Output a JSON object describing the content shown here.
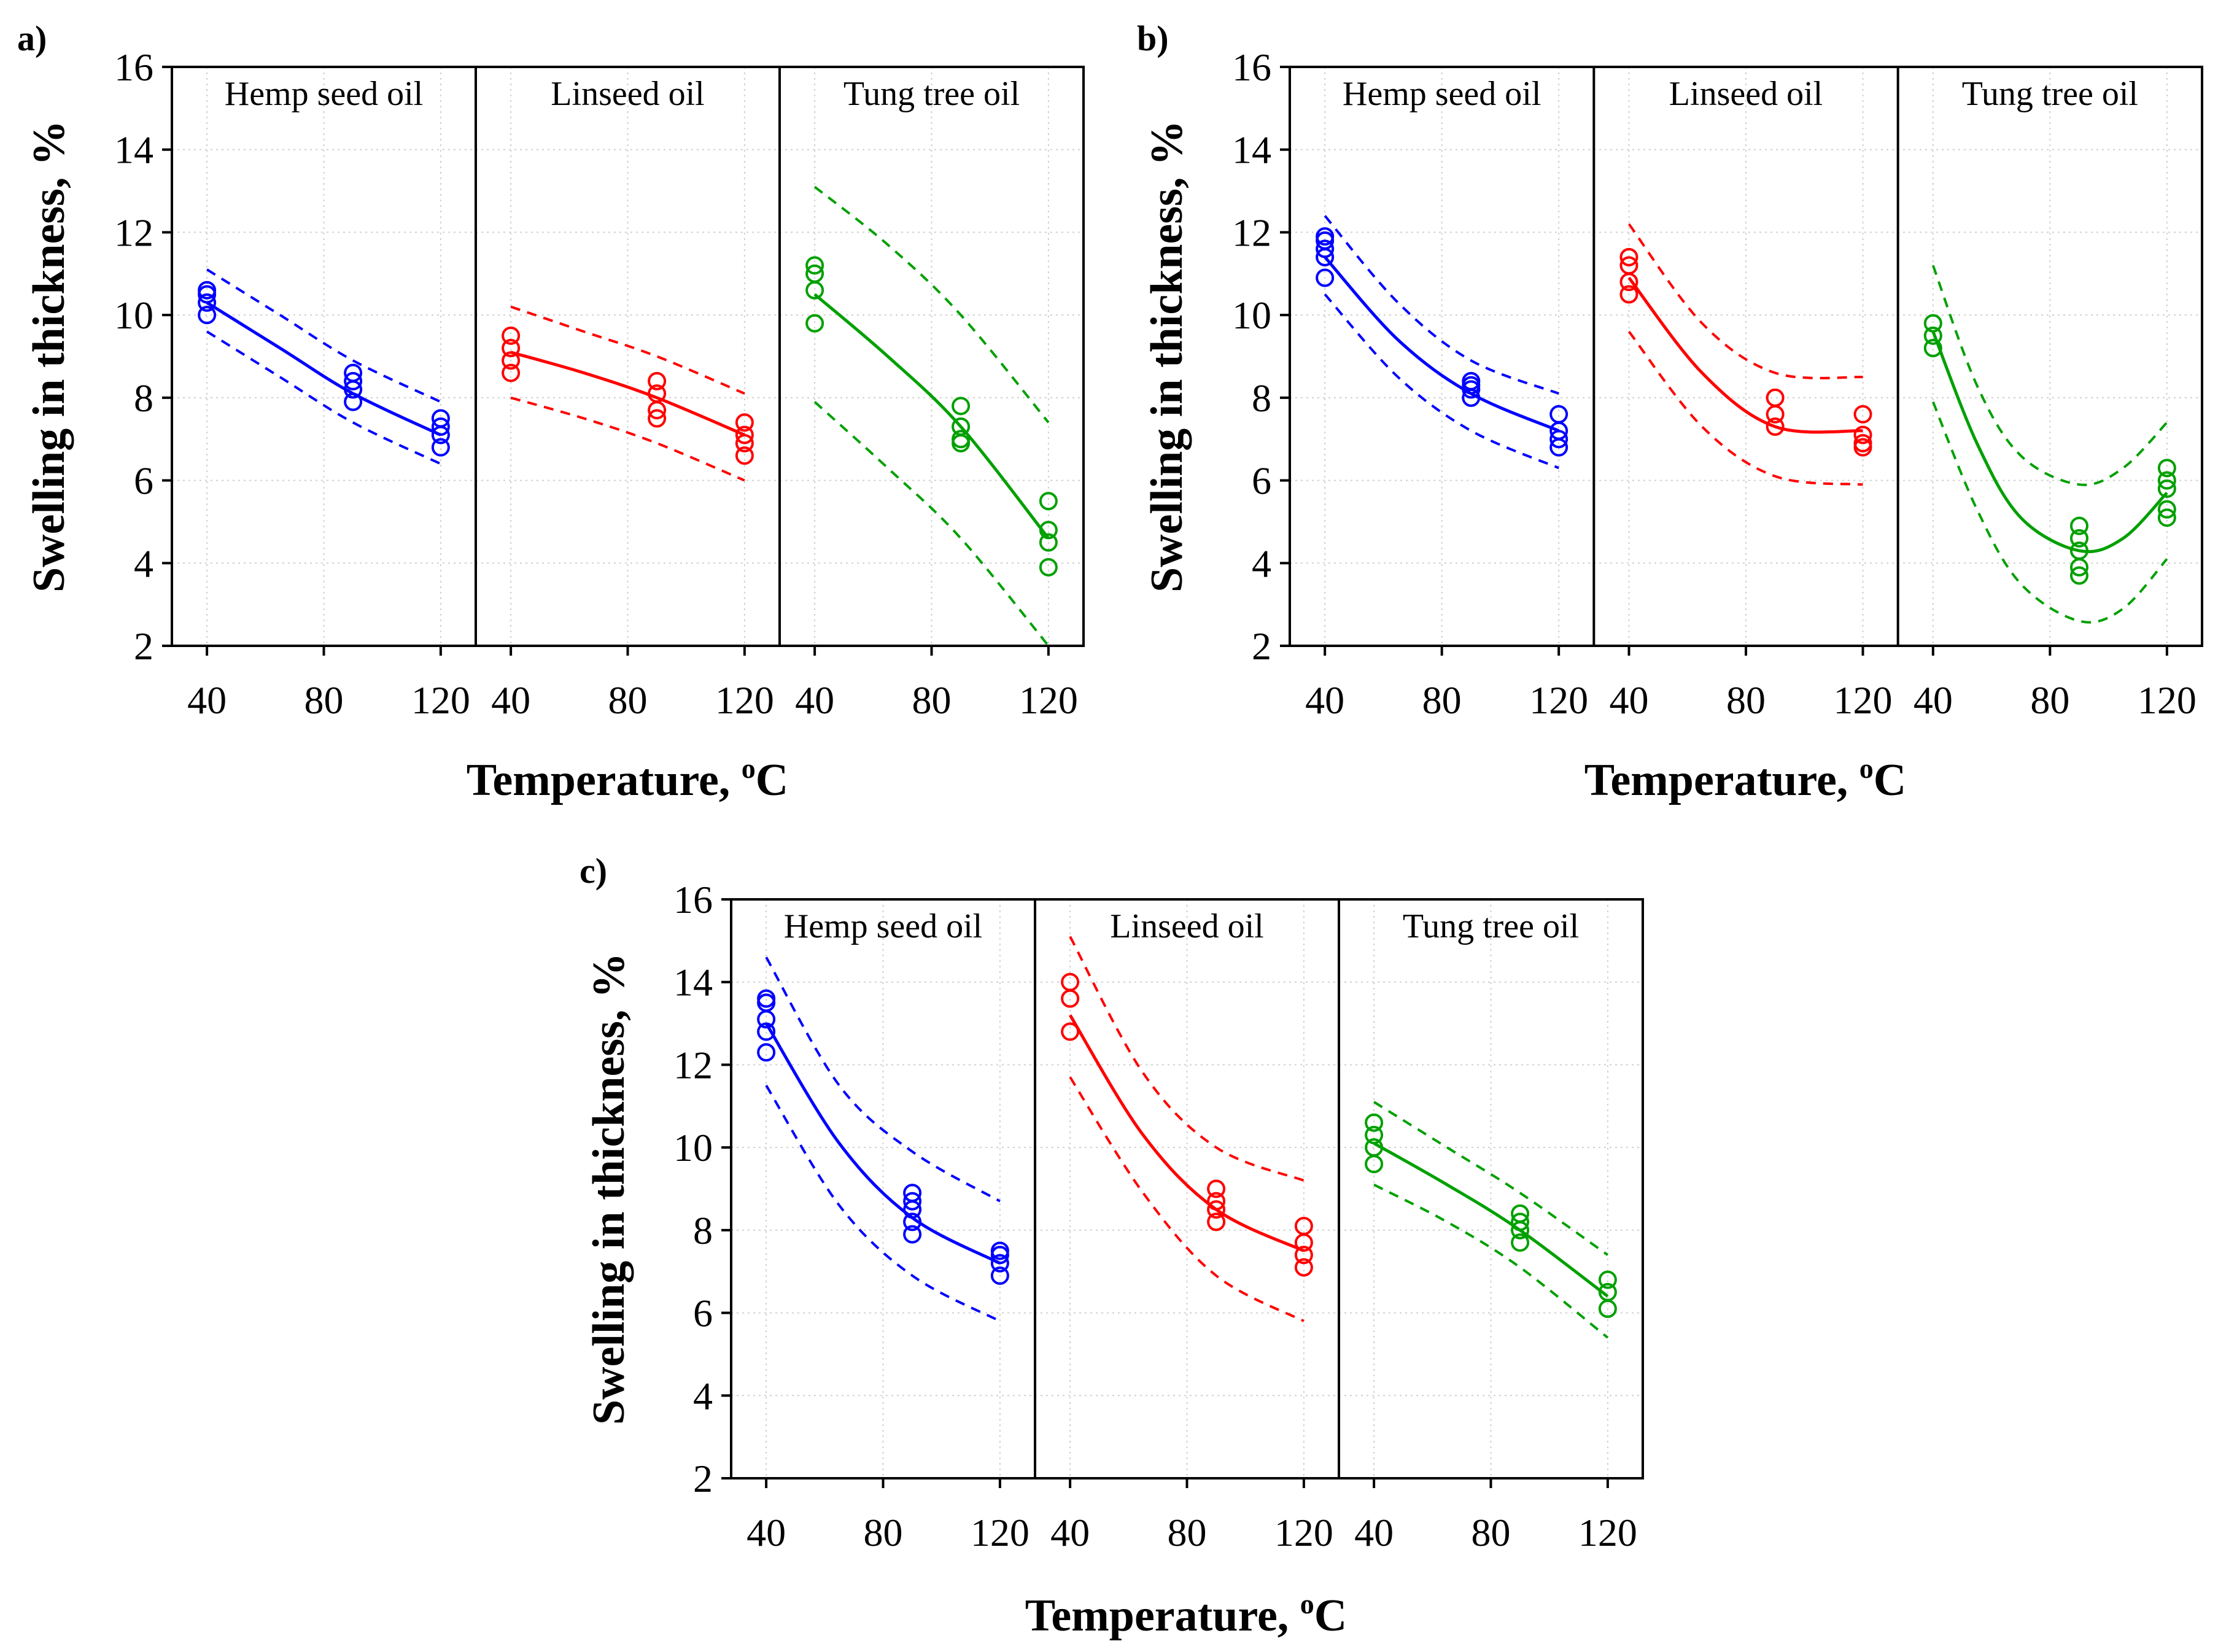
{
  "figure": {
    "panels": [
      "a)",
      "b)",
      "c)"
    ]
  },
  "chart_data": [
    {
      "type": "scatter",
      "panel_label": "a)",
      "xlabel": "Temperature, ",
      "xlabel_sup": "o",
      "xlabel_tail": "C",
      "ylabel": "Swelling in thickness, %",
      "ylim": [
        2,
        16
      ],
      "yticks": [
        2,
        4,
        6,
        8,
        10,
        12,
        14,
        16
      ],
      "xlim": [
        28,
        132
      ],
      "xticks": [
        40,
        80,
        120
      ],
      "facets": [
        {
          "title": "Hemp seed oil",
          "color": "#0000ff",
          "points": [
            [
              40,
              10.5
            ],
            [
              40,
              10.6
            ],
            [
              40,
              10.3
            ],
            [
              40,
              10.0
            ],
            [
              90,
              8.6
            ],
            [
              90,
              8.4
            ],
            [
              90,
              8.2
            ],
            [
              90,
              7.9
            ],
            [
              120,
              7.5
            ],
            [
              120,
              7.3
            ],
            [
              120,
              7.1
            ],
            [
              120,
              6.8
            ]
          ],
          "fit": [
            [
              40,
              10.3
            ],
            [
              65,
              9.2
            ],
            [
              90,
              8.1
            ],
            [
              120,
              7.1
            ]
          ],
          "upper": [
            [
              40,
              11.1
            ],
            [
              65,
              10.0
            ],
            [
              90,
              8.9
            ],
            [
              120,
              7.9
            ]
          ],
          "lower": [
            [
              40,
              9.6
            ],
            [
              65,
              8.5
            ],
            [
              90,
              7.4
            ],
            [
              120,
              6.4
            ]
          ]
        },
        {
          "title": "Linseed oil",
          "color": "#ff0000",
          "points": [
            [
              40,
              9.5
            ],
            [
              40,
              9.2
            ],
            [
              40,
              8.9
            ],
            [
              40,
              8.6
            ],
            [
              90,
              8.4
            ],
            [
              90,
              8.1
            ],
            [
              90,
              7.7
            ],
            [
              90,
              7.5
            ],
            [
              120,
              7.4
            ],
            [
              120,
              7.1
            ],
            [
              120,
              6.9
            ],
            [
              120,
              6.6
            ]
          ],
          "fit": [
            [
              40,
              9.1
            ],
            [
              65,
              8.6
            ],
            [
              90,
              8.0
            ],
            [
              120,
              7.1
            ]
          ],
          "upper": [
            [
              40,
              10.2
            ],
            [
              65,
              9.6
            ],
            [
              90,
              9.0
            ],
            [
              120,
              8.1
            ]
          ],
          "lower": [
            [
              40,
              8.0
            ],
            [
              65,
              7.5
            ],
            [
              90,
              6.9
            ],
            [
              120,
              6.0
            ]
          ]
        },
        {
          "title": "Tung tree oil",
          "color": "#00a000",
          "points": [
            [
              40,
              11.2
            ],
            [
              40,
              11.0
            ],
            [
              40,
              10.6
            ],
            [
              40,
              9.8
            ],
            [
              90,
              7.8
            ],
            [
              90,
              7.3
            ],
            [
              90,
              7.0
            ],
            [
              90,
              6.9
            ],
            [
              120,
              5.5
            ],
            [
              120,
              4.8
            ],
            [
              120,
              4.5
            ],
            [
              120,
              3.9
            ]
          ],
          "fit": [
            [
              40,
              10.5
            ],
            [
              65,
              9.0
            ],
            [
              90,
              7.3
            ],
            [
              120,
              4.6
            ]
          ],
          "upper": [
            [
              40,
              13.1
            ],
            [
              65,
              11.7
            ],
            [
              90,
              10.0
            ],
            [
              120,
              7.4
            ]
          ],
          "lower": [
            [
              40,
              7.9
            ],
            [
              65,
              6.3
            ],
            [
              90,
              4.6
            ],
            [
              120,
              2.0
            ]
          ]
        }
      ]
    },
    {
      "type": "scatter",
      "panel_label": "b)",
      "xlabel": "Temperature, ",
      "xlabel_sup": "o",
      "xlabel_tail": "C",
      "ylabel": "Swelling in thickness, %",
      "ylim": [
        2,
        16
      ],
      "yticks": [
        2,
        4,
        6,
        8,
        10,
        12,
        14,
        16
      ],
      "xlim": [
        28,
        132
      ],
      "xticks": [
        40,
        80,
        120
      ],
      "facets": [
        {
          "title": "Hemp seed oil",
          "color": "#0000ff",
          "points": [
            [
              40,
              11.9
            ],
            [
              40,
              11.8
            ],
            [
              40,
              11.6
            ],
            [
              40,
              11.4
            ],
            [
              40,
              10.9
            ],
            [
              90,
              8.4
            ],
            [
              90,
              8.3
            ],
            [
              90,
              8.2
            ],
            [
              90,
              8.0
            ],
            [
              120,
              7.6
            ],
            [
              120,
              7.2
            ],
            [
              120,
              7.0
            ],
            [
              120,
              6.8
            ]
          ],
          "fit": [
            [
              40,
              11.4
            ],
            [
              65,
              9.4
            ],
            [
              90,
              8.1
            ],
            [
              120,
              7.2
            ]
          ],
          "upper": [
            [
              40,
              12.4
            ],
            [
              65,
              10.3
            ],
            [
              90,
              8.9
            ],
            [
              120,
              8.1
            ]
          ],
          "lower": [
            [
              40,
              10.5
            ],
            [
              65,
              8.5
            ],
            [
              90,
              7.2
            ],
            [
              120,
              6.3
            ]
          ]
        },
        {
          "title": "Linseed oil",
          "color": "#ff0000",
          "points": [
            [
              40,
              11.4
            ],
            [
              40,
              11.2
            ],
            [
              40,
              10.8
            ],
            [
              40,
              10.5
            ],
            [
              90,
              8.0
            ],
            [
              90,
              7.6
            ],
            [
              90,
              7.3
            ],
            [
              120,
              7.6
            ],
            [
              120,
              7.1
            ],
            [
              120,
              6.9
            ],
            [
              120,
              6.8
            ]
          ],
          "fit": [
            [
              40,
              10.9
            ],
            [
              65,
              8.6
            ],
            [
              90,
              7.3
            ],
            [
              120,
              7.2
            ]
          ],
          "upper": [
            [
              40,
              12.2
            ],
            [
              65,
              9.8
            ],
            [
              90,
              8.6
            ],
            [
              120,
              8.5
            ]
          ],
          "lower": [
            [
              40,
              9.6
            ],
            [
              65,
              7.3
            ],
            [
              90,
              6.1
            ],
            [
              120,
              5.9
            ]
          ]
        },
        {
          "title": "Tung tree oil",
          "color": "#00a000",
          "points": [
            [
              40,
              9.8
            ],
            [
              40,
              9.5
            ],
            [
              40,
              9.2
            ],
            [
              90,
              4.9
            ],
            [
              90,
              4.6
            ],
            [
              90,
              4.3
            ],
            [
              90,
              3.9
            ],
            [
              90,
              3.7
            ],
            [
              120,
              6.3
            ],
            [
              120,
              6.0
            ],
            [
              120,
              5.8
            ],
            [
              120,
              5.3
            ],
            [
              120,
              5.1
            ]
          ],
          "fit": [
            [
              40,
              9.6
            ],
            [
              55,
              6.9
            ],
            [
              70,
              5.1
            ],
            [
              90,
              4.3
            ],
            [
              105,
              4.6
            ],
            [
              120,
              5.7
            ]
          ],
          "upper": [
            [
              40,
              11.2
            ],
            [
              55,
              8.3
            ],
            [
              70,
              6.6
            ],
            [
              90,
              5.9
            ],
            [
              105,
              6.3
            ],
            [
              120,
              7.4
            ]
          ],
          "lower": [
            [
              40,
              7.9
            ],
            [
              55,
              5.3
            ],
            [
              70,
              3.5
            ],
            [
              90,
              2.6
            ],
            [
              105,
              2.9
            ],
            [
              120,
              4.1
            ]
          ]
        }
      ]
    },
    {
      "type": "scatter",
      "panel_label": "c)",
      "xlabel": "Temperature, ",
      "xlabel_sup": "o",
      "xlabel_tail": "C",
      "ylabel": "Swelling in thickness, %",
      "ylim": [
        2,
        16
      ],
      "yticks": [
        2,
        4,
        6,
        8,
        10,
        12,
        14,
        16
      ],
      "xlim": [
        28,
        132
      ],
      "xticks": [
        40,
        80,
        120
      ],
      "facets": [
        {
          "title": "Hemp seed oil",
          "color": "#0000ff",
          "points": [
            [
              40,
              13.6
            ],
            [
              40,
              13.5
            ],
            [
              40,
              13.1
            ],
            [
              40,
              12.8
            ],
            [
              40,
              12.3
            ],
            [
              90,
              8.9
            ],
            [
              90,
              8.7
            ],
            [
              90,
              8.5
            ],
            [
              90,
              8.2
            ],
            [
              90,
              7.9
            ],
            [
              120,
              7.5
            ],
            [
              120,
              7.4
            ],
            [
              120,
              7.2
            ],
            [
              120,
              6.9
            ]
          ],
          "fit": [
            [
              40,
              13.0
            ],
            [
              65,
              10.1
            ],
            [
              90,
              8.3
            ],
            [
              120,
              7.2
            ]
          ],
          "upper": [
            [
              40,
              14.6
            ],
            [
              65,
              11.5
            ],
            [
              90,
              9.9
            ],
            [
              120,
              8.7
            ]
          ],
          "lower": [
            [
              40,
              11.5
            ],
            [
              65,
              8.6
            ],
            [
              90,
              6.9
            ],
            [
              120,
              5.8
            ]
          ]
        },
        {
          "title": "Linseed oil",
          "color": "#ff0000",
          "points": [
            [
              40,
              14.0
            ],
            [
              40,
              13.6
            ],
            [
              40,
              12.8
            ],
            [
              90,
              9.0
            ],
            [
              90,
              8.7
            ],
            [
              90,
              8.5
            ],
            [
              90,
              8.2
            ],
            [
              120,
              8.1
            ],
            [
              120,
              7.7
            ],
            [
              120,
              7.4
            ],
            [
              120,
              7.1
            ]
          ],
          "fit": [
            [
              40,
              13.2
            ],
            [
              65,
              10.3
            ],
            [
              90,
              8.5
            ],
            [
              120,
              7.5
            ]
          ],
          "upper": [
            [
              40,
              15.1
            ],
            [
              65,
              11.8
            ],
            [
              90,
              10.0
            ],
            [
              120,
              9.2
            ]
          ],
          "lower": [
            [
              40,
              11.7
            ],
            [
              65,
              8.9
            ],
            [
              90,
              6.9
            ],
            [
              120,
              5.8
            ]
          ]
        },
        {
          "title": "Tung tree oil",
          "color": "#00a000",
          "points": [
            [
              40,
              10.6
            ],
            [
              40,
              10.3
            ],
            [
              40,
              10.0
            ],
            [
              40,
              9.6
            ],
            [
              90,
              8.4
            ],
            [
              90,
              8.2
            ],
            [
              90,
              8.0
            ],
            [
              90,
              7.7
            ],
            [
              120,
              6.8
            ],
            [
              120,
              6.5
            ],
            [
              120,
              6.1
            ]
          ],
          "fit": [
            [
              40,
              10.1
            ],
            [
              65,
              9.1
            ],
            [
              90,
              8.0
            ],
            [
              120,
              6.4
            ]
          ],
          "upper": [
            [
              40,
              11.1
            ],
            [
              65,
              10.0
            ],
            [
              90,
              8.9
            ],
            [
              120,
              7.4
            ]
          ],
          "lower": [
            [
              40,
              9.1
            ],
            [
              65,
              8.2
            ],
            [
              90,
              7.1
            ],
            [
              120,
              5.4
            ]
          ]
        }
      ]
    }
  ]
}
